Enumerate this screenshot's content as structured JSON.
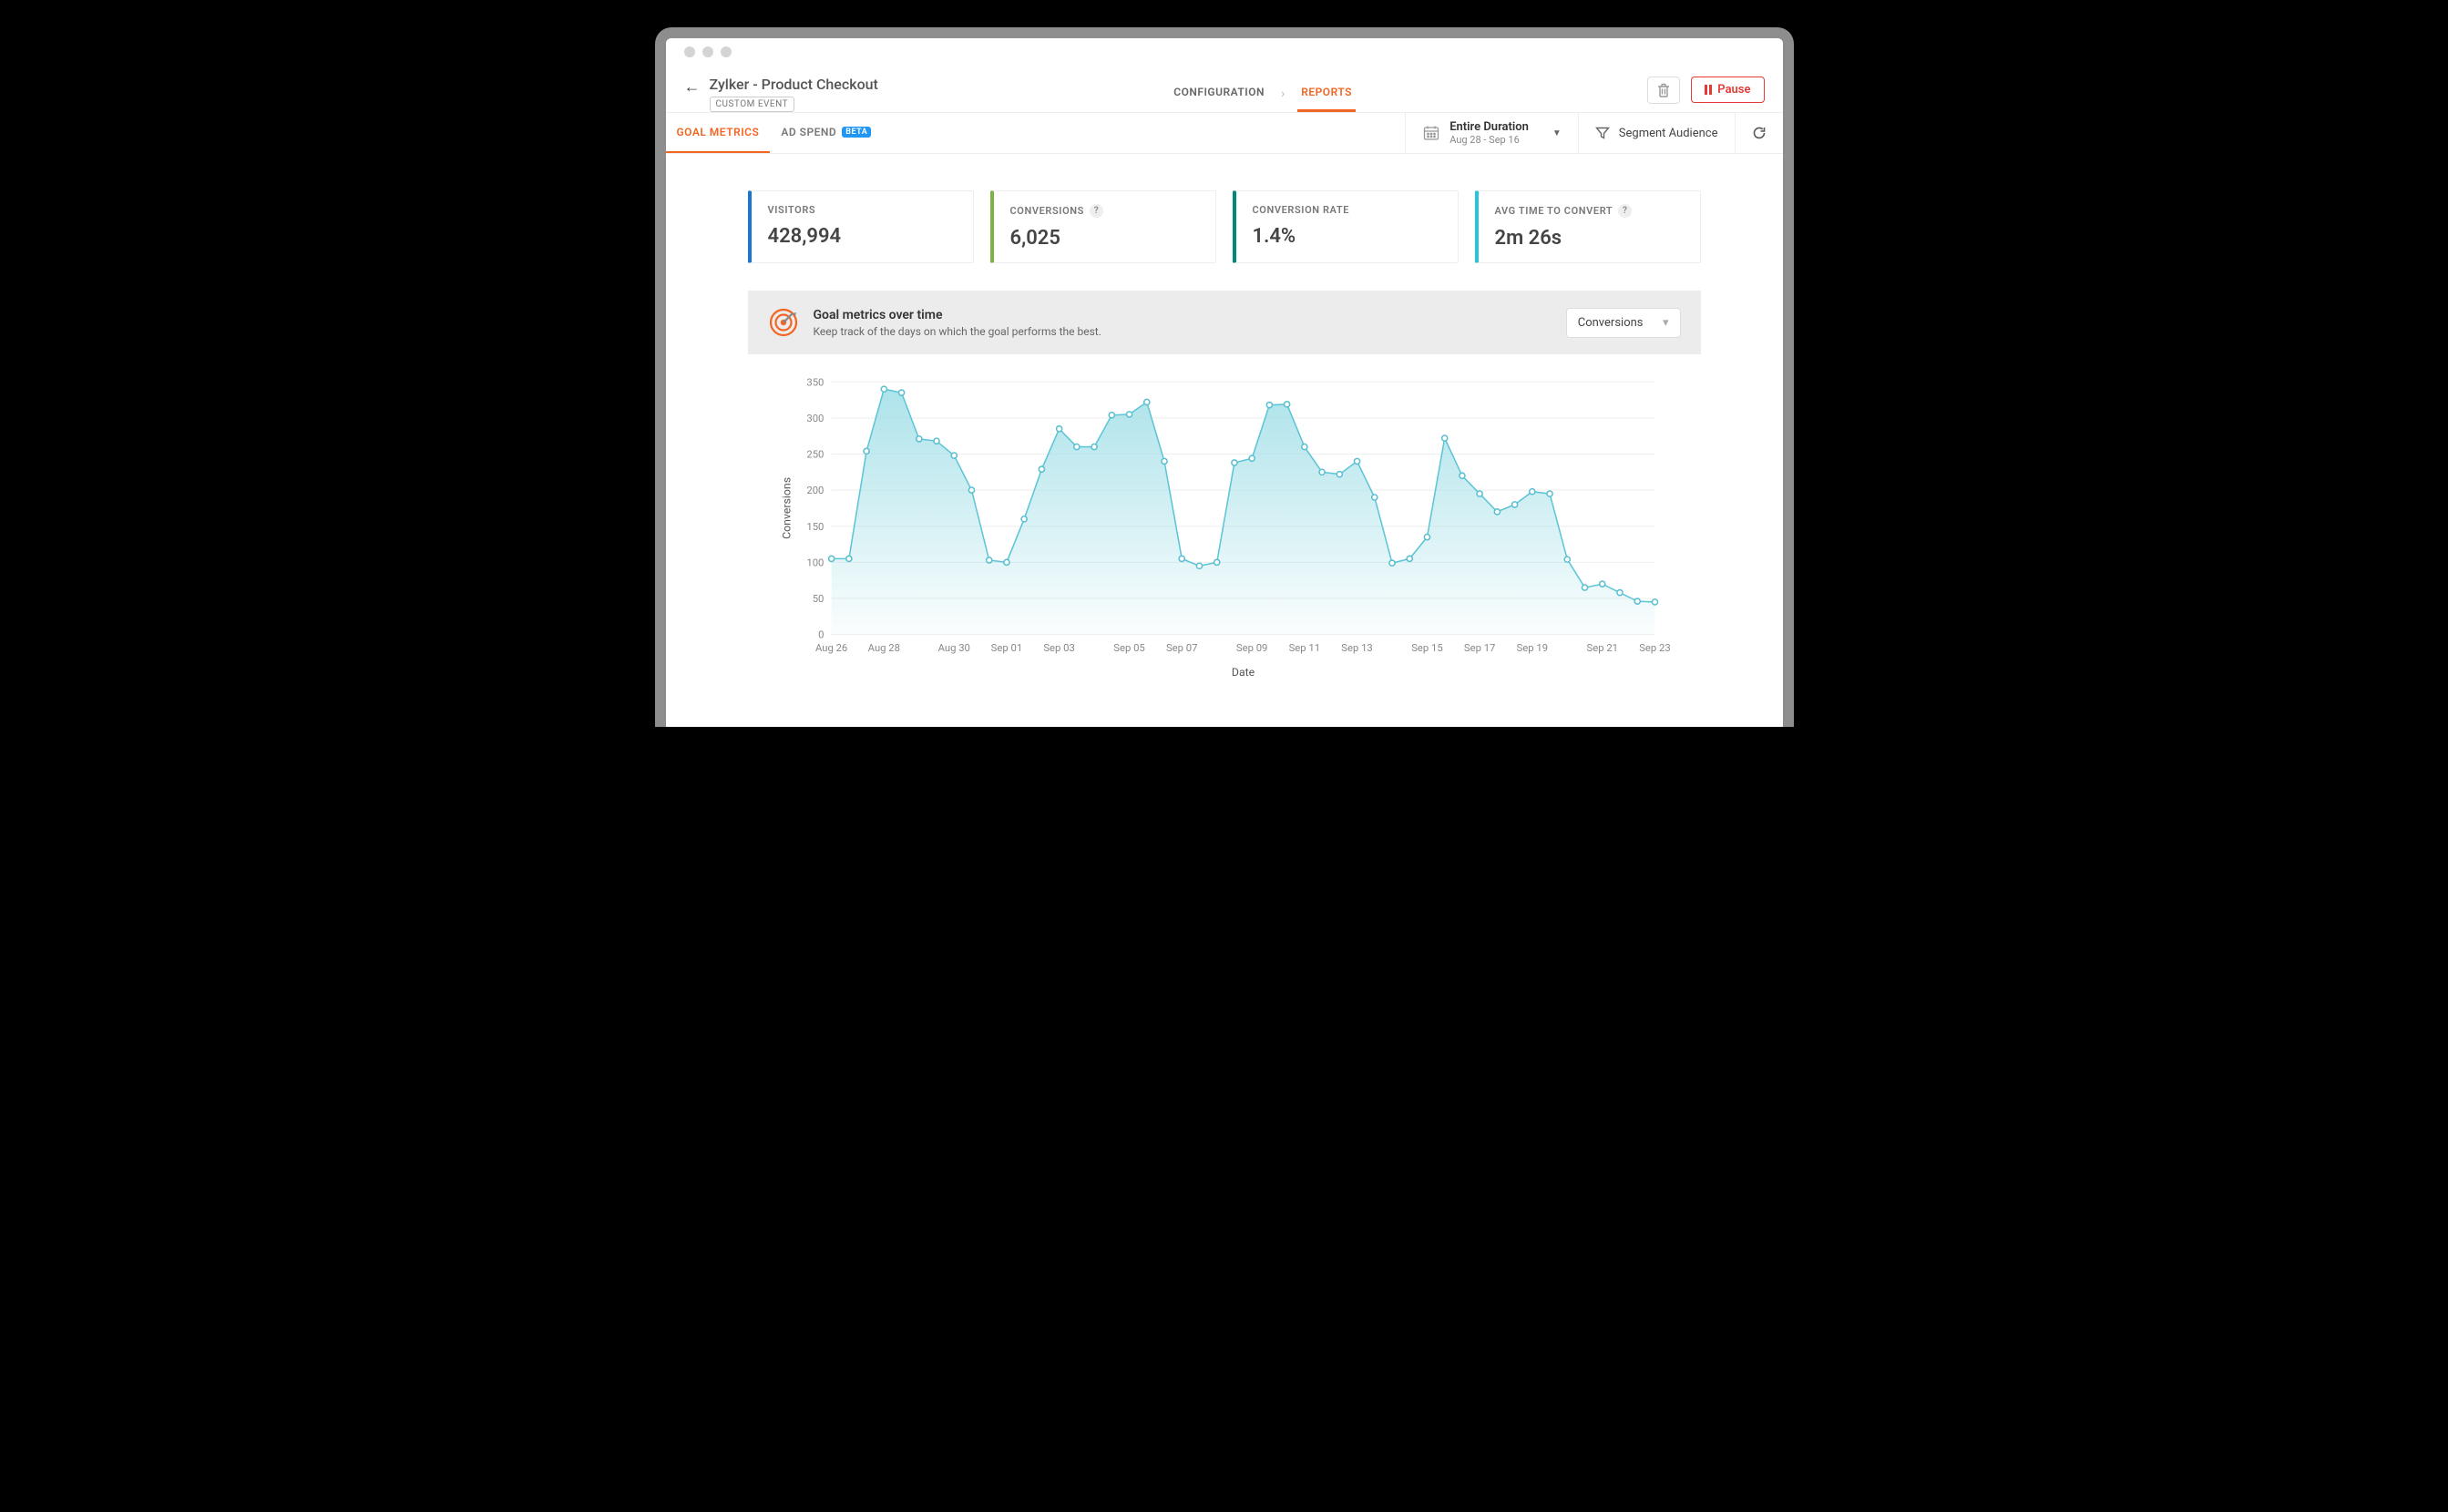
{
  "window": {
    "title_bar_dot_color": "#d4d4d4"
  },
  "header": {
    "title": "Zylker - Product Checkout",
    "tag": "CUSTOM EVENT",
    "tabs": [
      {
        "label": "CONFIGURATION",
        "active": false
      },
      {
        "label": "REPORTS",
        "active": true
      }
    ],
    "pause_label": "Pause",
    "trash_hint": "delete"
  },
  "subheader": {
    "tabs": [
      {
        "label": "GOAL METRICS",
        "active": true,
        "badge": null
      },
      {
        "label": "AD SPEND",
        "active": false,
        "badge": "BETA"
      }
    ],
    "date_range": {
      "title": "Entire Duration",
      "range": "Aug 28 - Sep 16"
    },
    "segment_label": "Segment Audience"
  },
  "metrics": [
    {
      "label": "VISITORS",
      "value": "428,994",
      "help": false,
      "accent": "#1976d2"
    },
    {
      "label": "CONVERSIONS",
      "value": "6,025",
      "help": true,
      "accent": "#7cb342"
    },
    {
      "label": "CONVERSION RATE",
      "value": "1.4%",
      "help": false,
      "accent": "#00897b"
    },
    {
      "label": "AVG TIME TO CONVERT",
      "value": "2m 26s",
      "help": true,
      "accent": "#26c6da"
    }
  ],
  "chart": {
    "type": "area",
    "title": "Goal metrics over time",
    "subtitle": "Keep track of the days on which the goal performs the best.",
    "select_value": "Conversions",
    "y_label": "Conversions",
    "x_label": "Date",
    "ylim": [
      0,
      350
    ],
    "ytick_step": 50,
    "x_ticks": [
      "Aug 26",
      "Aug 28",
      "Aug 30",
      "Sep 01",
      "Sep 03",
      "Sep 05",
      "Sep 07",
      "Sep 09",
      "Sep 11",
      "Sep 13",
      "Sep 15",
      "Sep 17",
      "Sep 19",
      "Sep 21",
      "Sep 23"
    ],
    "data_points": [
      105,
      105,
      254,
      340,
      335,
      271,
      268,
      248,
      200,
      103,
      100,
      160,
      229,
      285,
      260,
      260,
      304,
      305,
      322,
      240,
      105,
      95,
      100,
      238,
      244,
      318,
      319,
      260,
      225,
      222,
      240,
      190,
      99,
      105,
      135,
      272,
      220,
      195,
      170,
      180,
      198,
      195,
      104,
      65,
      70,
      58,
      46,
      45
    ],
    "line_color": "#5dc5d6",
    "area_color_top": "#a4e0e8",
    "area_color_bottom": "rgba(164,224,232,0.05)",
    "grid_color": "#eeeeee",
    "text_color": "#888888",
    "marker_radius": 3
  }
}
